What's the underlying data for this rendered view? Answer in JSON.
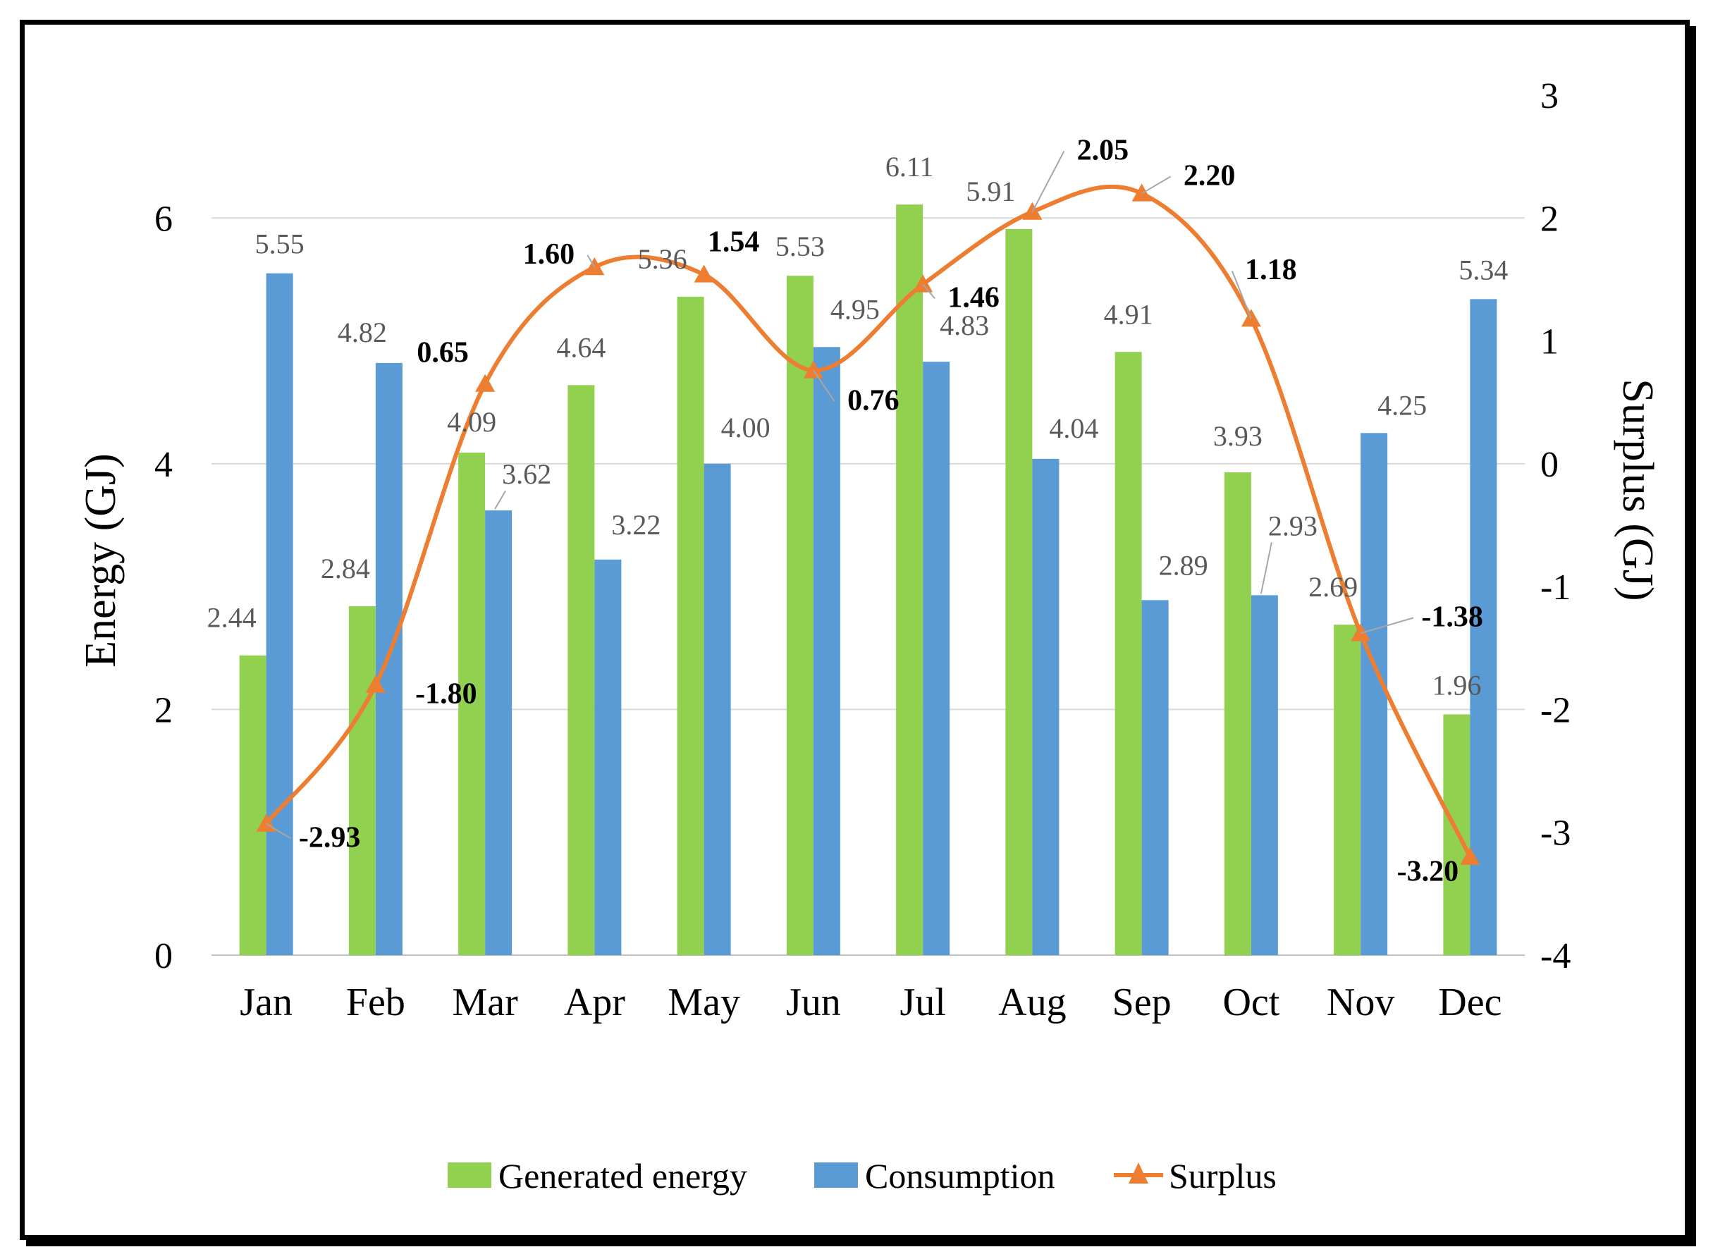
{
  "chart_data": {
    "type": "bar",
    "categories": [
      "Jan",
      "Feb",
      "Mar",
      "Apr",
      "May",
      "Jun",
      "Jul",
      "Aug",
      "Sep",
      "Oct",
      "Nov",
      "Dec"
    ],
    "series": [
      {
        "name": "Generated energy",
        "type": "bar",
        "axis": "left",
        "color": "#92D050",
        "values": [
          2.44,
          2.84,
          4.09,
          4.64,
          5.36,
          5.53,
          6.11,
          5.91,
          4.91,
          3.93,
          2.69,
          1.96
        ],
        "labels": [
          "2.44",
          "2.84",
          "4.09",
          "4.64",
          "5.36",
          "5.53",
          "6.11",
          "5.91",
          "4.91",
          "3.93",
          "2.69",
          "1.96"
        ]
      },
      {
        "name": "Consumption",
        "type": "bar",
        "axis": "left",
        "color": "#5B9BD5",
        "values": [
          5.55,
          4.82,
          3.62,
          3.22,
          4.0,
          4.95,
          4.83,
          4.04,
          2.89,
          2.93,
          4.25,
          5.34
        ],
        "labels": [
          "5.55",
          "4.82",
          "3.62",
          "3.22",
          "4.00",
          "4.95",
          "4.83",
          "4.04",
          "2.89",
          "2.93",
          "4.25",
          "5.34"
        ]
      },
      {
        "name": "Surplus",
        "type": "line",
        "axis": "right",
        "color": "#ED7D31",
        "smooth": true,
        "marker": "triangle",
        "values": [
          -2.93,
          -1.8,
          0.65,
          1.6,
          1.54,
          0.76,
          1.46,
          2.05,
          2.2,
          1.18,
          -1.38,
          -3.2
        ],
        "labels": [
          "-2.93",
          "-1.80",
          "0.65",
          "1.60",
          "1.54",
          "0.76",
          "1.46",
          "2.05",
          "2.20",
          "1.18",
          "-1.38",
          "-3.20"
        ]
      }
    ],
    "ylabel": "Energy (GJ)",
    "y2label": "Surplus (GJ)",
    "ylim": [
      0,
      7
    ],
    "y2lim": [
      -4,
      3
    ],
    "yticks": [
      "0",
      "2",
      "4",
      "6"
    ],
    "y2ticks": [
      "-4",
      "-3",
      "-2",
      "-1",
      "0",
      "1",
      "2",
      "3"
    ],
    "grid": true,
    "legend_position": "bottom"
  }
}
